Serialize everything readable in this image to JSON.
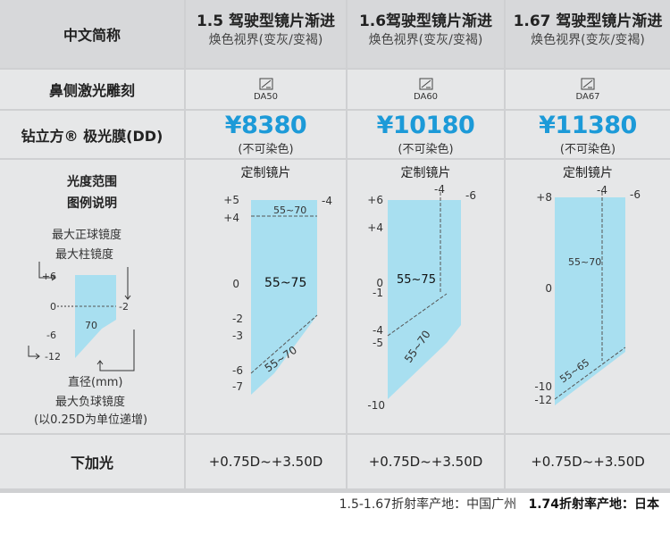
{
  "table": {
    "corner_label": "中文简称",
    "columns": [
      {
        "title": "1.5  驾驶型镜片渐进",
        "subtitle": "焕色视界(变灰/变褐)",
        "engraving_code": "DA50",
        "price": "¥8380",
        "price_note": "(不可染色)",
        "chart_title": "定制镜片",
        "add_power": "+0.75D~+3.50D"
      },
      {
        "title": "1.6驾驶型镜片渐进",
        "subtitle": "焕色视界(变灰/变褐)",
        "engraving_code": "DA60",
        "price": "¥10180",
        "price_note": "(不可染色)",
        "chart_title": "定制镜片",
        "add_power": "+0.75D~+3.50D"
      },
      {
        "title": "1.67  驾驶型镜片渐进",
        "subtitle": "焕色视界(变灰/变褐)",
        "engraving_code": "DA67",
        "price": "¥11380",
        "price_note": "(不可染色)",
        "chart_title": "定制镜片",
        "add_power": "+0.75D~+3.50D"
      }
    ],
    "row_labels": {
      "engraving": "鼻侧激光雕刻",
      "coating": "钻立方® 极光膜(DD)",
      "add_power": "下加光"
    }
  },
  "legend": {
    "head1": "光度范围",
    "head2": "图例说明",
    "max_sphere": "最大正球镜度",
    "max_cyl": "最大柱镜度",
    "diameter": "直径(mm)",
    "max_neg_sphere": "最大负球镜度",
    "step_note": "(以0.25D为单位递增)",
    "ticks": [
      "+6",
      "0",
      "-6",
      "-12"
    ],
    "cyl_tick": "-2",
    "diameter_value": "70"
  },
  "charts": [
    {
      "sph_ticks": [
        "+5",
        "+4",
        "0",
        "-2",
        "-3",
        "-6",
        "-7"
      ],
      "cyl_top": "-4",
      "zone_upper": "55~70",
      "zone_main": "55~75",
      "zone_lower": "55~70"
    },
    {
      "sph_ticks": [
        "+6",
        "+4",
        "0",
        "-1",
        "-4",
        "-5",
        "-10"
      ],
      "cyl_top": "-4",
      "cyl_right": "-6",
      "zone_main": "55~75",
      "zone_lower": "55~70"
    },
    {
      "sph_ticks": [
        "+8",
        "0",
        "-10",
        "-12"
      ],
      "cyl_top": "-4",
      "cyl_right": "-6",
      "zone_main": "55~70",
      "zone_lower": "55~65"
    }
  ],
  "footer": {
    "origin_text": "1.5-1.67折射率产地：中国广州",
    "origin_bold": "1.74折射率产地：日本"
  },
  "colors": {
    "price": "#1c9ad8",
    "zone_fill": "#a8dff0",
    "header_bg": "#d7d8da",
    "row_bg": "#e6e7e8"
  }
}
